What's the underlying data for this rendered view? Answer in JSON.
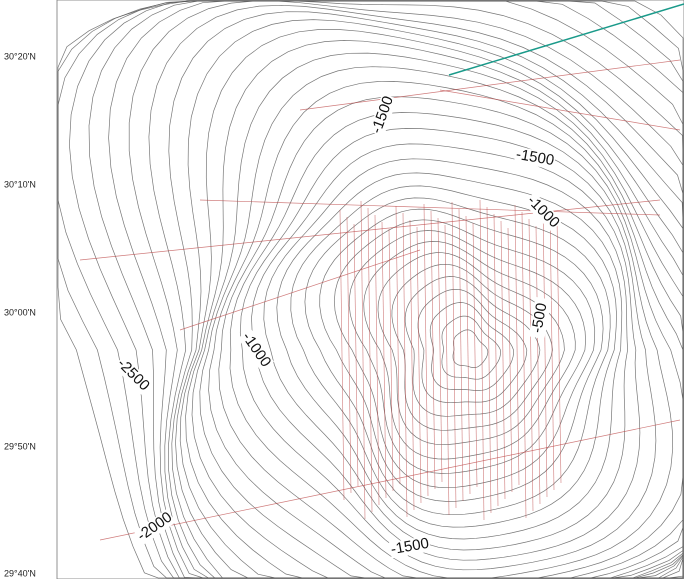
{
  "map": {
    "lat_labels": [
      "30°20'N",
      "30°10'N",
      "30°00'N",
      "29°50'N",
      "29°40'N"
    ],
    "contour_labels": [
      "-1500",
      "-1500",
      "-1000",
      "-500",
      "-2500",
      "-1000",
      "-2000",
      "-1500"
    ]
  }
}
